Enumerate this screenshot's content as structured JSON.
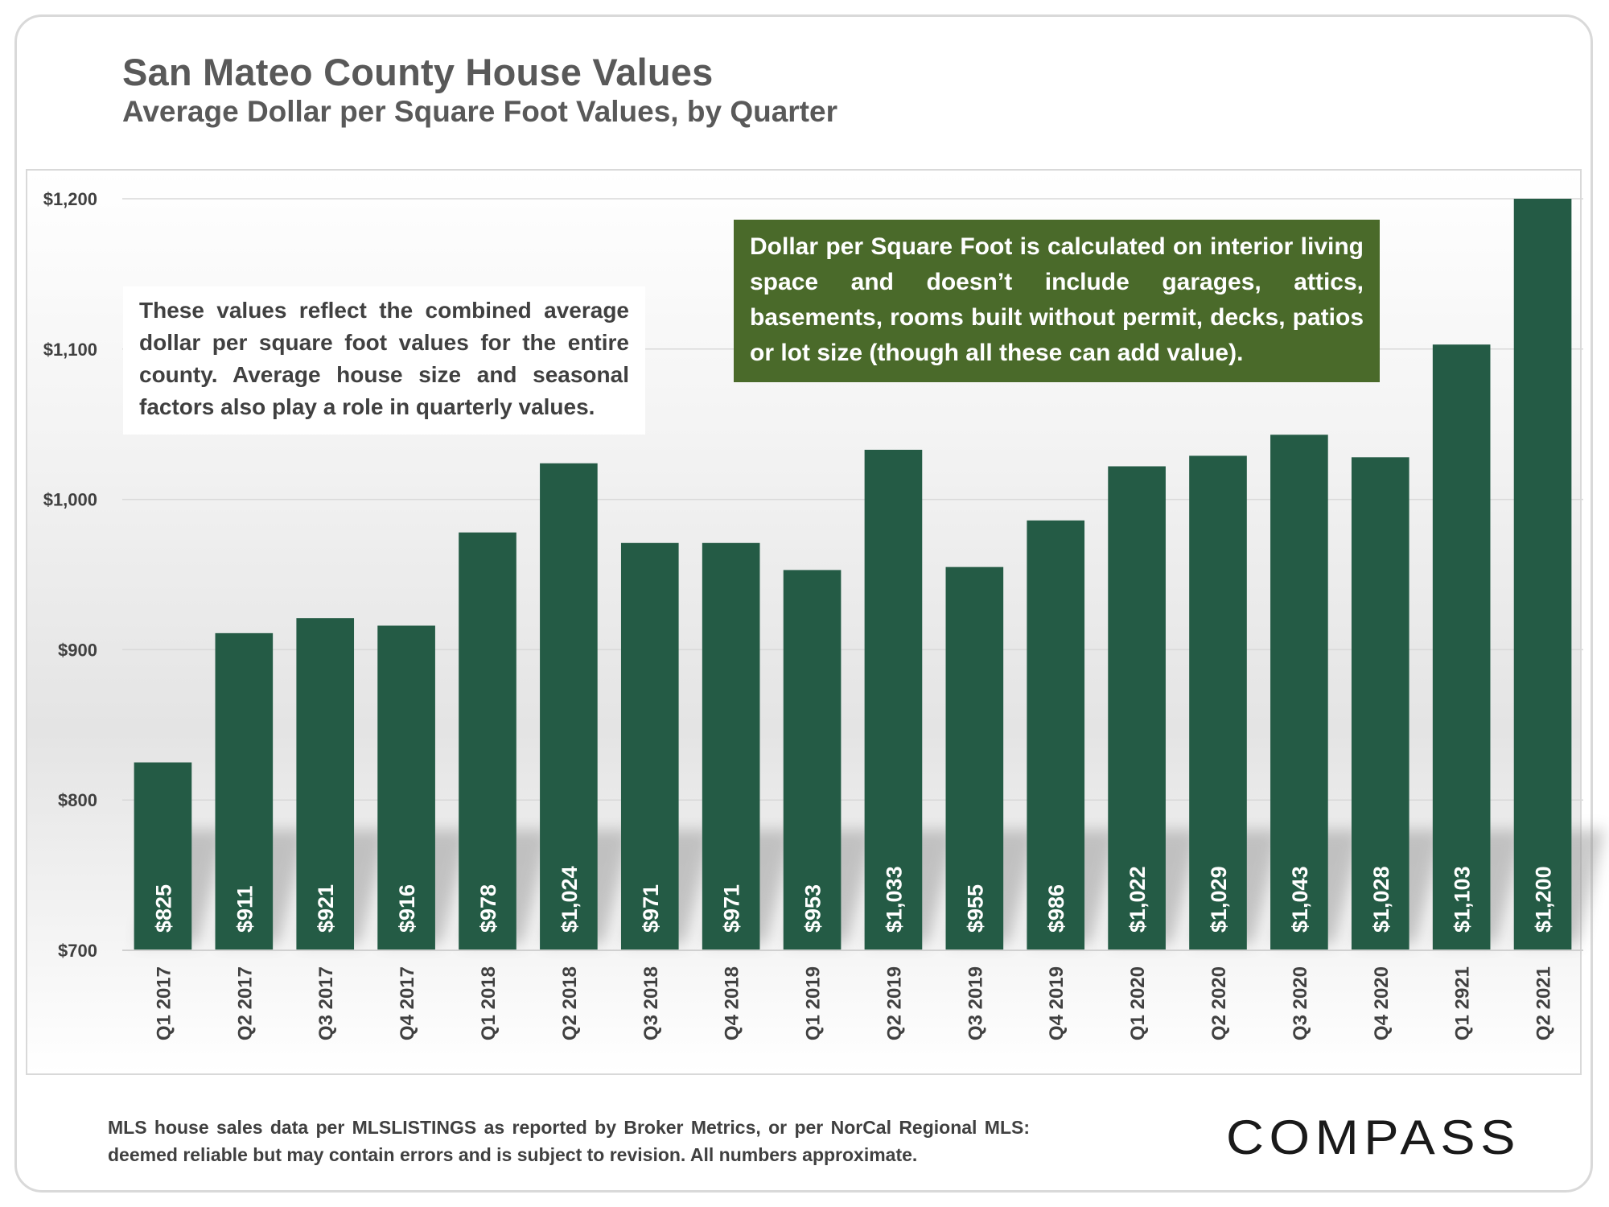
{
  "header": {
    "title": "San Mateo County House Values",
    "subtitle": "Average Dollar per Square Foot Values, by Quarter"
  },
  "notes": {
    "left": "These values reflect the combined average dollar per square foot values for the entire county. Average house size and seasonal factors also play a role in quarterly values.",
    "right": "Dollar per Square Foot is calculated on interior living space and doesn’t include garages, attics, basements, rooms built without permit, decks, patios or lot size (though all these can add value)."
  },
  "footer": {
    "source": "MLS house sales data per MLSLISTINGS as reported by Broker Metrics, or per NorCal Regional MLS: deemed reliable but may contain errors and is subject to revision. All numbers approximate."
  },
  "logo": {
    "text": "COMPASS"
  },
  "colors": {
    "bar": "#245b45",
    "note_box": "#4a6a2a",
    "text": "#404040",
    "title": "#595959"
  },
  "chart_data": {
    "type": "bar",
    "title": "San Mateo County House Values",
    "subtitle": "Average Dollar per Square Foot Values, by Quarter",
    "categories": [
      "Q1 2017",
      "Q2 2017",
      "Q3 2017",
      "Q4 2017",
      "Q1 2018",
      "Q2 2018",
      "Q3 2018",
      "Q4 2018",
      "Q1 2019",
      "Q2 2019",
      "Q3 2019",
      "Q4 2019",
      "Q1 2020",
      "Q2 2020",
      "Q3 2020",
      "Q4 2020",
      "Q1 2921",
      "Q2 2021"
    ],
    "values": [
      825,
      911,
      921,
      916,
      978,
      1024,
      971,
      971,
      953,
      1033,
      955,
      986,
      1022,
      1029,
      1043,
      1028,
      1103,
      1200
    ],
    "value_labels": [
      "$825",
      "$911",
      "$921",
      "$916",
      "$978",
      "$1,024",
      "$971",
      "$971",
      "$953",
      "$1,033",
      "$955",
      "$986",
      "$1,022",
      "$1,029",
      "$1,043",
      "$1,028",
      "$1,103",
      "$1,200"
    ],
    "ylim": [
      700,
      1200
    ],
    "yticks": [
      700,
      800,
      900,
      1000,
      1100,
      1200
    ],
    "ytick_labels": [
      "$700",
      "$800",
      "$900",
      "$1,000",
      "$1,100",
      "$1,200"
    ],
    "xlabel": "",
    "ylabel": "",
    "grid": true,
    "legend": "none"
  }
}
